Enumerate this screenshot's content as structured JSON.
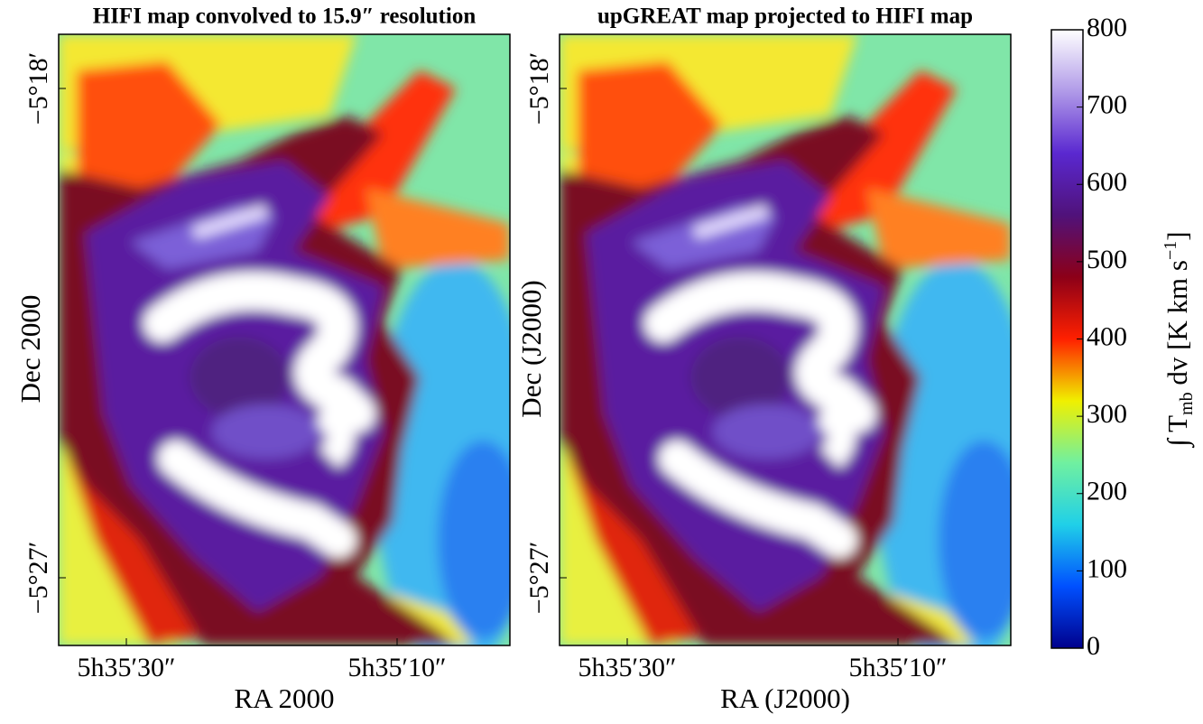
{
  "chart_data": [
    {
      "type": "heatmap",
      "title": "HIFI map convolved to 15.9″ resolution",
      "xlabel": "RA 2000",
      "ylabel": "Dec 2000",
      "xtick_labels": [
        "5h35′30″",
        "5h35′10″"
      ],
      "ytick_labels": [
        "−5°18′",
        "−5°27′"
      ]
    },
    {
      "type": "heatmap",
      "title": "upGREAT map projected to HIFI map",
      "xlabel": "RA (J2000)",
      "ylabel": "Dec (J2000)",
      "xtick_labels": [
        "5h35′30″",
        "5h35′10″"
      ],
      "ytick_labels": [
        "−5°18′",
        "−5°27′"
      ]
    },
    {
      "type": "colorbar",
      "label_parts": [
        "∫ T",
        "mb",
        " dv  [K km s",
        "−1",
        "]"
      ],
      "ylim": [
        0,
        800
      ],
      "yticks": [
        0,
        100,
        200,
        300,
        400,
        500,
        600,
        700,
        800
      ],
      "colormap": [
        "#00008c",
        "#0050ff",
        "#20d0e8",
        "#70f0a0",
        "#f0f000",
        "#ff2000",
        "#8c0018",
        "#50127a",
        "#5a28d0",
        "#b09ae8",
        "#ffffff"
      ]
    }
  ]
}
